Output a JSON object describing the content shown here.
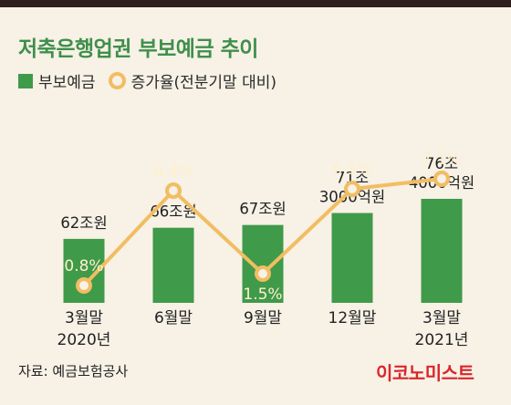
{
  "title": "저축은행업권 부보예금 추이",
  "legend": {
    "bar_label": "부보예금",
    "line_label": "증가율(전분기말 대비)"
  },
  "source": "자료: 예금보험공사",
  "brand": "이코노미스트",
  "colors": {
    "bar": "#3f9a4a",
    "line": "#f2bd62",
    "title": "#3f8f4c",
    "brand": "#d9262b",
    "background": "#f7f1e6"
  },
  "chart_data": {
    "type": "bar",
    "title": "저축은행업권 부보예금 추이",
    "categories": [
      [
        "3월말",
        "2020년"
      ],
      [
        "6월말"
      ],
      [
        "9월말"
      ],
      [
        "12월말"
      ],
      [
        "3월말",
        "2021년"
      ]
    ],
    "series": [
      {
        "name": "부보예금",
        "type": "bar",
        "values": [
          62,
          66,
          67,
          71.3,
          76.4
        ],
        "unit": "조원",
        "labels": [
          [
            "62조원"
          ],
          [
            "66조원"
          ],
          [
            "67조원"
          ],
          [
            "71조",
            "3000억원"
          ],
          [
            "76조",
            "4000억원"
          ]
        ]
      },
      {
        "name": "증가율(전분기말 대비)",
        "type": "line",
        "values": [
          0.8,
          6.4,
          1.5,
          6.5,
          7.1
        ],
        "unit": "%",
        "labels": [
          "0.8%",
          "6.4%",
          "1.5%",
          "6.5%",
          "7.1%"
        ]
      }
    ],
    "grid": false,
    "legend": "top-left"
  }
}
